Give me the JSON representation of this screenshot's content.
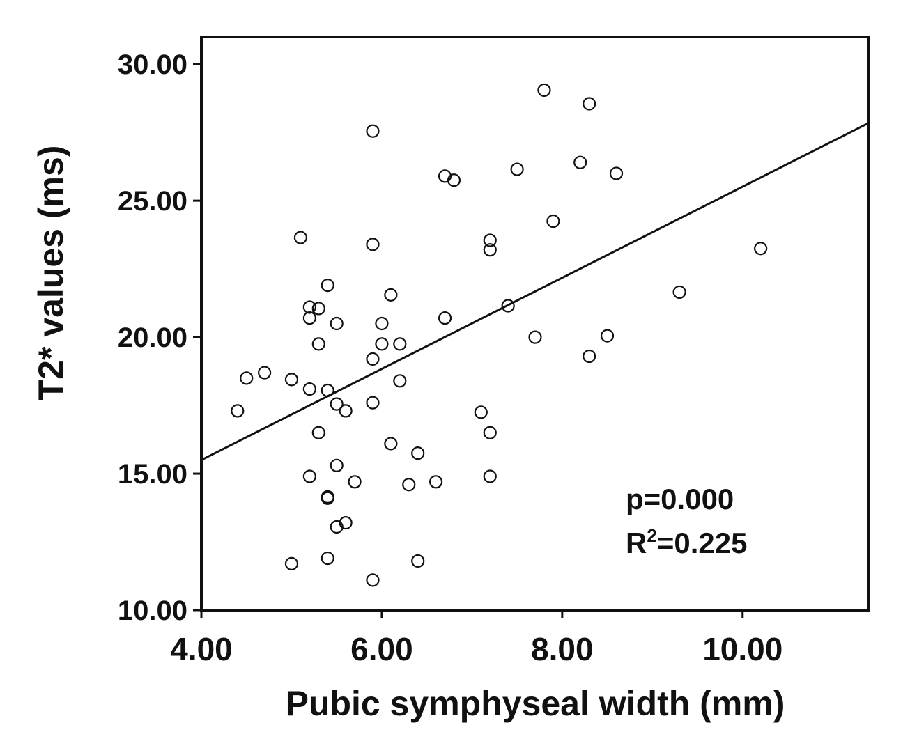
{
  "chart_data": {
    "type": "scatter",
    "title": "",
    "xlabel": "Pubic symphyseal width (mm)",
    "ylabel": "T2* values (ms)",
    "xlim": [
      4.0,
      11.4
    ],
    "ylim": [
      10.0,
      31.0
    ],
    "x_ticks": [
      {
        "value": 4.0,
        "label": "4.00"
      },
      {
        "value": 6.0,
        "label": "6.00"
      },
      {
        "value": 8.0,
        "label": "8.00"
      },
      {
        "value": 10.0,
        "label": "10.00"
      }
    ],
    "y_ticks": [
      {
        "value": 10.0,
        "label": "10.00"
      },
      {
        "value": 15.0,
        "label": "15.00"
      },
      {
        "value": 20.0,
        "label": "20.00"
      },
      {
        "value": 25.0,
        "label": "25.00"
      },
      {
        "value": 30.0,
        "label": "30.00"
      }
    ],
    "grid": false,
    "legend": "none",
    "points": [
      {
        "x": 4.4,
        "y": 17.3
      },
      {
        "x": 4.5,
        "y": 18.5
      },
      {
        "x": 4.7,
        "y": 18.7
      },
      {
        "x": 5.0,
        "y": 18.45
      },
      {
        "x": 5.0,
        "y": 11.7
      },
      {
        "x": 5.1,
        "y": 23.65
      },
      {
        "x": 5.2,
        "y": 21.1
      },
      {
        "x": 5.2,
        "y": 20.7
      },
      {
        "x": 5.2,
        "y": 18.1
      },
      {
        "x": 5.2,
        "y": 14.9
      },
      {
        "x": 5.3,
        "y": 21.05
      },
      {
        "x": 5.3,
        "y": 19.75
      },
      {
        "x": 5.3,
        "y": 16.5
      },
      {
        "x": 5.4,
        "y": 21.9
      },
      {
        "x": 5.4,
        "y": 18.05
      },
      {
        "x": 5.4,
        "y": 14.1
      },
      {
        "x": 5.4,
        "y": 14.15
      },
      {
        "x": 5.4,
        "y": 11.9
      },
      {
        "x": 5.5,
        "y": 20.5
      },
      {
        "x": 5.5,
        "y": 17.55
      },
      {
        "x": 5.5,
        "y": 15.3
      },
      {
        "x": 5.5,
        "y": 13.05
      },
      {
        "x": 5.6,
        "y": 17.3
      },
      {
        "x": 5.6,
        "y": 13.2
      },
      {
        "x": 5.7,
        "y": 14.7
      },
      {
        "x": 5.9,
        "y": 27.55
      },
      {
        "x": 5.9,
        "y": 23.4
      },
      {
        "x": 5.9,
        "y": 19.2
      },
      {
        "x": 5.9,
        "y": 17.6
      },
      {
        "x": 5.9,
        "y": 11.1
      },
      {
        "x": 6.0,
        "y": 20.5
      },
      {
        "x": 6.0,
        "y": 19.75
      },
      {
        "x": 6.1,
        "y": 21.55
      },
      {
        "x": 6.1,
        "y": 16.1
      },
      {
        "x": 6.2,
        "y": 19.75
      },
      {
        "x": 6.2,
        "y": 18.4
      },
      {
        "x": 6.3,
        "y": 14.6
      },
      {
        "x": 6.4,
        "y": 15.75
      },
      {
        "x": 6.4,
        "y": 11.8
      },
      {
        "x": 6.6,
        "y": 14.7
      },
      {
        "x": 6.7,
        "y": 25.9
      },
      {
        "x": 6.7,
        "y": 20.7
      },
      {
        "x": 6.8,
        "y": 25.75
      },
      {
        "x": 7.1,
        "y": 17.25
      },
      {
        "x": 7.2,
        "y": 23.55
      },
      {
        "x": 7.2,
        "y": 23.2
      },
      {
        "x": 7.2,
        "y": 16.5
      },
      {
        "x": 7.2,
        "y": 14.9
      },
      {
        "x": 7.4,
        "y": 21.15
      },
      {
        "x": 7.5,
        "y": 26.15
      },
      {
        "x": 7.7,
        "y": 20.0
      },
      {
        "x": 7.8,
        "y": 29.05
      },
      {
        "x": 7.9,
        "y": 24.25
      },
      {
        "x": 8.2,
        "y": 26.4
      },
      {
        "x": 8.3,
        "y": 28.55
      },
      {
        "x": 8.3,
        "y": 19.3
      },
      {
        "x": 8.5,
        "y": 20.05
      },
      {
        "x": 8.6,
        "y": 26.0
      },
      {
        "x": 9.3,
        "y": 21.65
      },
      {
        "x": 10.2,
        "y": 23.25
      }
    ],
    "fit_line": {
      "x": [
        4.0,
        11.4
      ],
      "y": [
        15.5,
        27.85
      ]
    },
    "annotations": [
      {
        "id": "p",
        "text": "p=0.000"
      },
      {
        "id": "r2",
        "base": "R",
        "sup": "2",
        "rest": "=0.225"
      }
    ]
  }
}
